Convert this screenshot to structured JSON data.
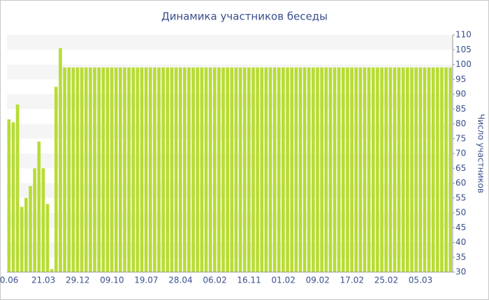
{
  "chart_data": {
    "type": "bar",
    "title": "Динамика участников беседы",
    "y_axis_label": "Число участников",
    "color": "#b8dc34",
    "grid": "bands",
    "y_axis_side": "right",
    "ylim": [
      30,
      110
    ],
    "yticks": [
      30,
      35,
      40,
      45,
      50,
      55,
      60,
      65,
      70,
      75,
      80,
      85,
      90,
      95,
      100,
      105,
      110
    ],
    "categories": [
      "0.06",
      null,
      null,
      null,
      null,
      null,
      null,
      null,
      "21.03",
      null,
      null,
      null,
      null,
      null,
      null,
      null,
      "29.12",
      null,
      null,
      null,
      null,
      null,
      null,
      null,
      "09.10",
      null,
      null,
      null,
      null,
      null,
      null,
      null,
      "19.07",
      null,
      null,
      null,
      null,
      null,
      null,
      null,
      "28.04",
      null,
      null,
      null,
      null,
      null,
      null,
      null,
      "06.02",
      null,
      null,
      null,
      null,
      null,
      null,
      null,
      "16.11",
      null,
      null,
      null,
      null,
      null,
      null,
      null,
      "01.02",
      null,
      null,
      null,
      null,
      null,
      null,
      null,
      "09.02",
      null,
      null,
      null,
      null,
      null,
      null,
      null,
      "17.02",
      null,
      null,
      null,
      null,
      null,
      null,
      null,
      "25.02",
      null,
      null,
      null,
      null,
      null,
      null,
      null,
      "05.03",
      null,
      null,
      null,
      null,
      null,
      null,
      null
    ],
    "values": [
      81.5,
      80.5,
      86.5,
      52,
      55,
      59,
      65,
      74,
      65,
      53,
      31,
      92.5,
      105.5,
      99,
      99,
      99,
      99,
      99,
      99,
      99,
      99,
      99,
      99,
      99,
      99,
      99,
      99,
      99,
      99,
      99,
      99,
      99,
      99,
      99,
      99,
      99,
      99,
      99,
      99,
      99,
      99,
      99,
      99,
      99,
      99,
      99,
      99,
      99,
      99,
      99,
      99,
      99,
      99,
      99,
      99,
      99,
      99,
      99,
      99,
      99,
      99,
      99,
      99,
      99,
      99,
      99,
      99,
      99,
      99,
      99,
      99,
      99,
      99,
      99,
      99,
      99,
      99,
      99,
      99,
      99,
      99,
      99,
      99,
      99,
      99,
      99,
      99,
      99,
      99,
      99,
      99,
      99,
      99,
      99,
      99,
      99,
      99,
      99,
      99,
      99,
      99,
      99,
      99,
      99
    ]
  }
}
